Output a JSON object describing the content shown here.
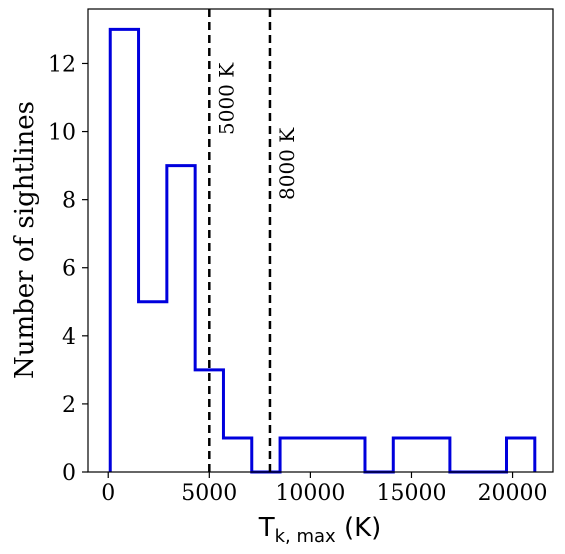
{
  "chart_data": {
    "type": "histogram",
    "xlabel_main": "T",
    "xlabel_sub": "k, max",
    "xlabel_unit": " (K)",
    "ylabel": "Number of sightlines",
    "xlim": [
      -1000,
      22000
    ],
    "ylim": [
      0,
      13.6
    ],
    "xticks": [
      0,
      5000,
      10000,
      15000,
      20000
    ],
    "xtick_labels": [
      "0",
      "5000",
      "10000",
      "15000",
      "20000"
    ],
    "yticks": [
      0,
      2,
      4,
      6,
      8,
      10,
      12
    ],
    "ytick_labels": [
      "0",
      "2",
      "4",
      "6",
      "8",
      "10",
      "12"
    ],
    "bin_edges": [
      100,
      1500,
      2900,
      4300,
      5700,
      7100,
      8500,
      9900,
      11300,
      12700,
      14100,
      15500,
      16900,
      18300,
      19700,
      21100
    ],
    "counts": [
      13,
      5,
      9,
      3,
      1,
      0,
      1,
      1,
      1,
      0,
      1,
      1,
      0,
      0,
      1
    ],
    "series_color": "#0000dd",
    "vlines": [
      {
        "x": 5000,
        "label": "5000 K"
      },
      {
        "x": 8000,
        "label": "8000 K"
      }
    ]
  }
}
